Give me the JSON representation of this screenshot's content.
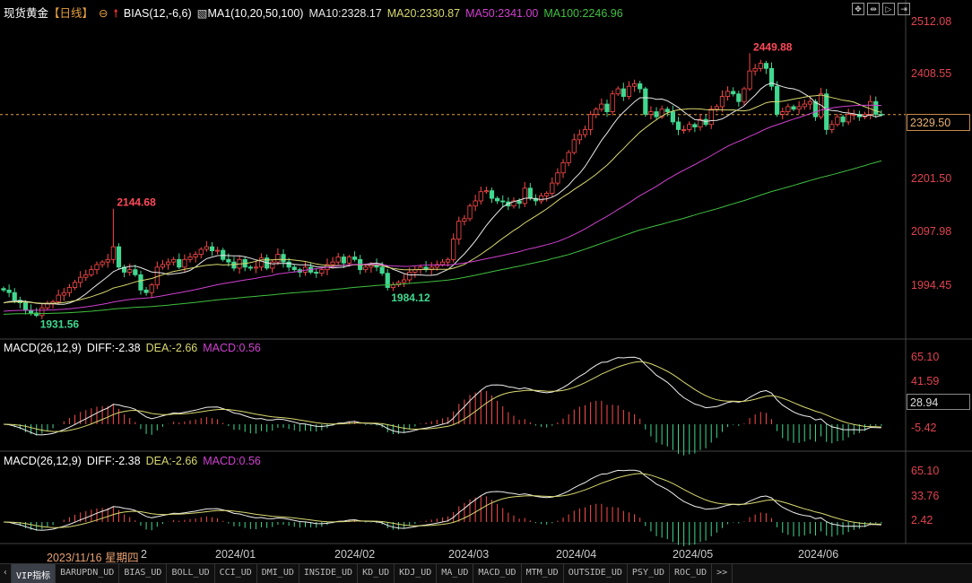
{
  "header": {
    "symbol": "现货黄金",
    "period": "【日线】",
    "indicator": "BIAS(12,-6,6)",
    "ma_set": "MA1(10,20,50,100)",
    "ma10": "MA10:2328.17",
    "ma20": "MA20:2330.87",
    "ma50": "MA50:2341.00",
    "ma100": "MA100:2246.96"
  },
  "toolbar": {
    "icons": [
      "crosshair-icon",
      "zoom-range-icon",
      "play-forward-icon",
      "exit-right-icon"
    ]
  },
  "colors": {
    "up": "#ff4a4a",
    "down": "#40d890",
    "ma10": "#e8e8e8",
    "ma20": "#d8d870",
    "ma50": "#d040d0",
    "ma100": "#40c040",
    "axis": "#e0424e"
  },
  "macd1": {
    "label": "MACD(26,12,9)",
    "diff": "DIFF:-2.38",
    "dea": "DEA:-2.66",
    "macd": "MACD:0.56",
    "ticks": [
      "65.10",
      "41.59",
      "-5.42"
    ],
    "current": "28.94"
  },
  "macd2": {
    "label": "MACD(26,12,9)",
    "diff": "DIFF:-2.38",
    "dea": "DEA:-2.66",
    "macd": "MACD:0.56",
    "ticks": [
      "65.10",
      "33.76",
      "2.42"
    ]
  },
  "dates": {
    "cursor": "2023/11/16 星期四",
    "cursor_suffix": "2",
    "months": [
      "2024/01",
      "2024/02",
      "2024/03",
      "2024/04",
      "2024/05",
      "2024/06"
    ]
  },
  "tabs": [
    "VIP指标",
    "BARUPDN_UD",
    "BIAS_UD",
    "BOLL_UD",
    "CCI_UD",
    "DMI_UD",
    "INSIDE_UD",
    "KD_UD",
    "KDJ_UD",
    "MA_UD",
    "MACD_UD",
    "MTM_UD",
    "OUTSIDE_UD",
    "PSY_UD",
    "ROC_UD",
    ">>"
  ],
  "chart_data": {
    "type": "candlestick",
    "price_ticks": [
      "2512.08",
      "2408.55",
      "2201.50",
      "2097.98",
      "1994.45"
    ],
    "last_price": "2329.50",
    "annotations": [
      {
        "label": "2144.68",
        "type": "high"
      },
      {
        "label": "2449.88",
        "type": "high"
      },
      {
        "label": "1931.56",
        "type": "low"
      },
      {
        "label": "1984.12",
        "type": "low"
      }
    ],
    "ylim": [
      1920,
      2512.08
    ],
    "closes": [
      1985,
      1980,
      1965,
      1960,
      1945,
      1940,
      1935,
      1950,
      1958,
      1962,
      1975,
      1980,
      1990,
      2000,
      2010,
      2015,
      2025,
      2035,
      2040,
      2045,
      2070,
      2030,
      2020,
      2025,
      2015,
      1985,
      1980,
      1995,
      2030,
      2035,
      2040,
      2045,
      2030,
      2045,
      2050,
      2055,
      2065,
      2070,
      2062,
      2063,
      2045,
      2040,
      2028,
      2045,
      2030,
      2028,
      2030,
      2048,
      2028,
      2040,
      2055,
      2040,
      2030,
      2025,
      2020,
      2030,
      2020,
      2018,
      2025,
      2035,
      2040,
      2050,
      2038,
      2050,
      2045,
      2025,
      2030,
      2035,
      2030,
      2018,
      1990,
      1995,
      2000,
      2005,
      2020,
      2025,
      2030,
      2025,
      2030,
      2035,
      2040,
      2045,
      2085,
      2120,
      2125,
      2150,
      2160,
      2178,
      2180,
      2165,
      2160,
      2158,
      2150,
      2160,
      2155,
      2185,
      2165,
      2160,
      2170,
      2175,
      2195,
      2215,
      2235,
      2255,
      2280,
      2290,
      2300,
      2330,
      2340,
      2350,
      2335,
      2370,
      2380,
      2365,
      2385,
      2390,
      2380,
      2330,
      2335,
      2325,
      2340,
      2335,
      2315,
      2300,
      2300,
      2310,
      2305,
      2320,
      2310,
      2340,
      2345,
      2365,
      2375,
      2370,
      2355,
      2380,
      2415,
      2420,
      2430,
      2420,
      2385,
      2330,
      2335,
      2345,
      2340,
      2345,
      2350,
      2355,
      2325,
      2370,
      2300,
      2310,
      2325,
      2315,
      2330,
      2330,
      2325,
      2330,
      2355,
      2330,
      2329.5
    ]
  }
}
